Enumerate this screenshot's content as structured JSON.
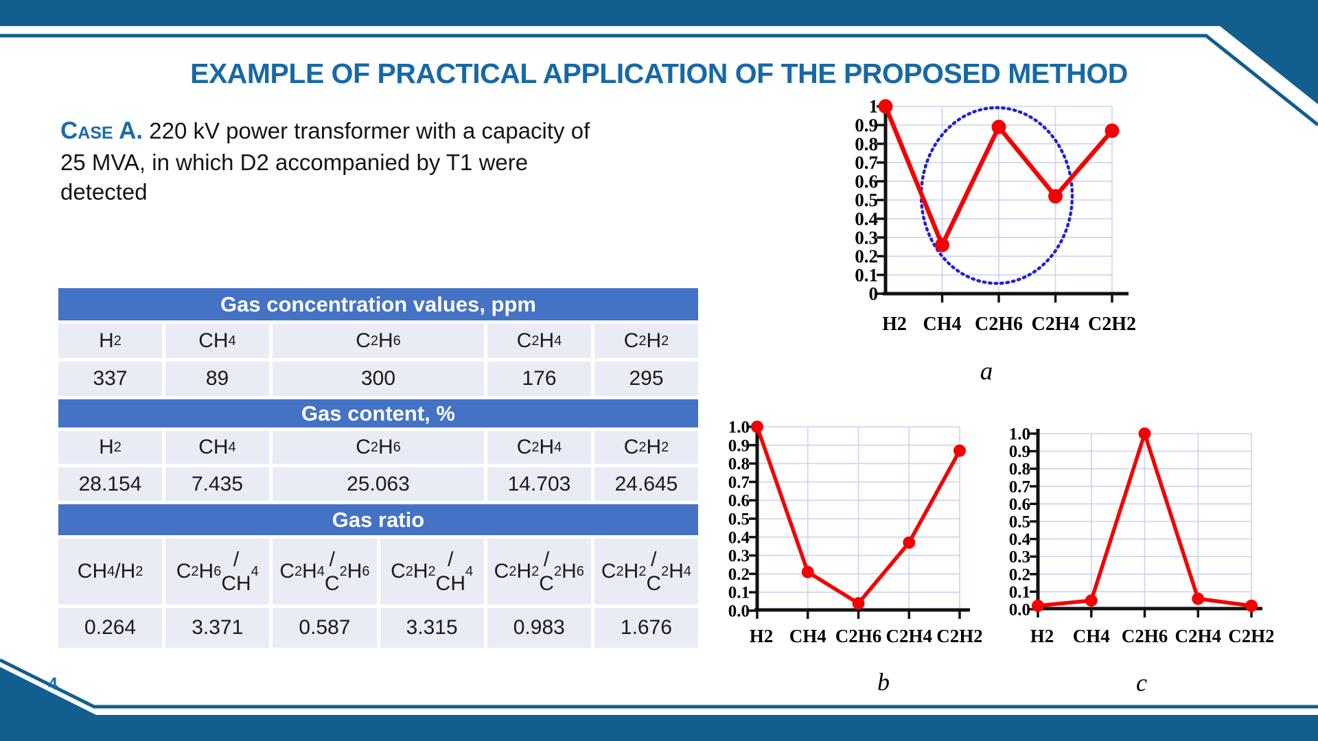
{
  "slide": {
    "title": "EXAMPLE OF PRACTICAL APPLICATION OF THE PROPOSED METHOD",
    "case_label": "Case A.",
    "case_text": " 220 kV power transformer with a capacity of 25 MVA, in which D2 accompanied by T1 were detected",
    "page_number": "4"
  },
  "colors": {
    "banner_blue": "#115E8F",
    "title_blue": "#1769A6",
    "case_label_blue": "#1A6CA8",
    "table_header_bg": "#4472C4",
    "table_row_bg": "#E9EBF5",
    "chart_line_red": "#F40000",
    "ellipse_blue": "#2222CC",
    "grid_lavender": "#CDD0F2",
    "axis_black": "#111111"
  },
  "table": {
    "sections": [
      {
        "header": "Gas concentration values, ppm",
        "columns": [
          "H2",
          "CH4",
          "C2H6",
          "C2H4",
          "C2H2"
        ],
        "values": [
          "337",
          "89",
          "300",
          "176",
          "295"
        ]
      },
      {
        "header": "Gas content, %",
        "columns": [
          "H2",
          "CH4",
          "C2H6",
          "C2H4",
          "C2H2"
        ],
        "values": [
          "28.154",
          "7.435",
          "25.063",
          "14.703",
          "24.645"
        ]
      },
      {
        "header": "Gas ratio",
        "columns": [
          "CH4/H2",
          "C2H6/\nCH4",
          "C2H4/\nC2H6",
          "C2H2/\nCH4",
          "C2H2/\nC2H6",
          "C2H2/\nC2H4"
        ],
        "values": [
          "0.264",
          "3.371",
          "0.587",
          "3.315",
          "0.983",
          "1.676"
        ]
      }
    ]
  },
  "chart_data": [
    {
      "type": "line",
      "letter": "a",
      "categories": [
        "H2",
        "CH4",
        "C2H6",
        "C2H4",
        "C2H2"
      ],
      "values": [
        1.0,
        0.26,
        0.89,
        0.52,
        0.87
      ],
      "ylim": [
        0,
        1
      ],
      "yticks": [
        "1",
        "0.9",
        "0.8",
        "0.7",
        "0.6",
        "0.5",
        "0.4",
        "0.3",
        "0.2",
        "0.1",
        "0"
      ],
      "grid": true,
      "legend": "none",
      "ellipse": {
        "around": [
          "CH4",
          "C2H6",
          "C2H4"
        ],
        "style": "blue dotted"
      }
    },
    {
      "type": "line",
      "letter": "b",
      "categories": [
        "H2",
        "CH4",
        "C2H6",
        "C2H4",
        "C2H2"
      ],
      "values": [
        1.0,
        0.21,
        0.04,
        0.37,
        0.87
      ],
      "ylim": [
        0,
        1
      ],
      "yticks": [
        "1.0",
        "0.9",
        "0.8",
        "0.7",
        "0.6",
        "0.5",
        "0.4",
        "0.3",
        "0.2",
        "0.1",
        "0.0"
      ],
      "grid": true,
      "legend": "none"
    },
    {
      "type": "line",
      "letter": "c",
      "categories": [
        "H2",
        "CH4",
        "C2H6",
        "C2H4",
        "C2H2"
      ],
      "values": [
        0.02,
        0.05,
        1.0,
        0.06,
        0.02
      ],
      "ylim": [
        0,
        1
      ],
      "yticks": [
        "1.0",
        "0.9",
        "0.8",
        "0.7",
        "0.6",
        "0.5",
        "0.4",
        "0.3",
        "0.2",
        "0.1",
        "0.0"
      ],
      "grid": true,
      "legend": "none"
    }
  ]
}
